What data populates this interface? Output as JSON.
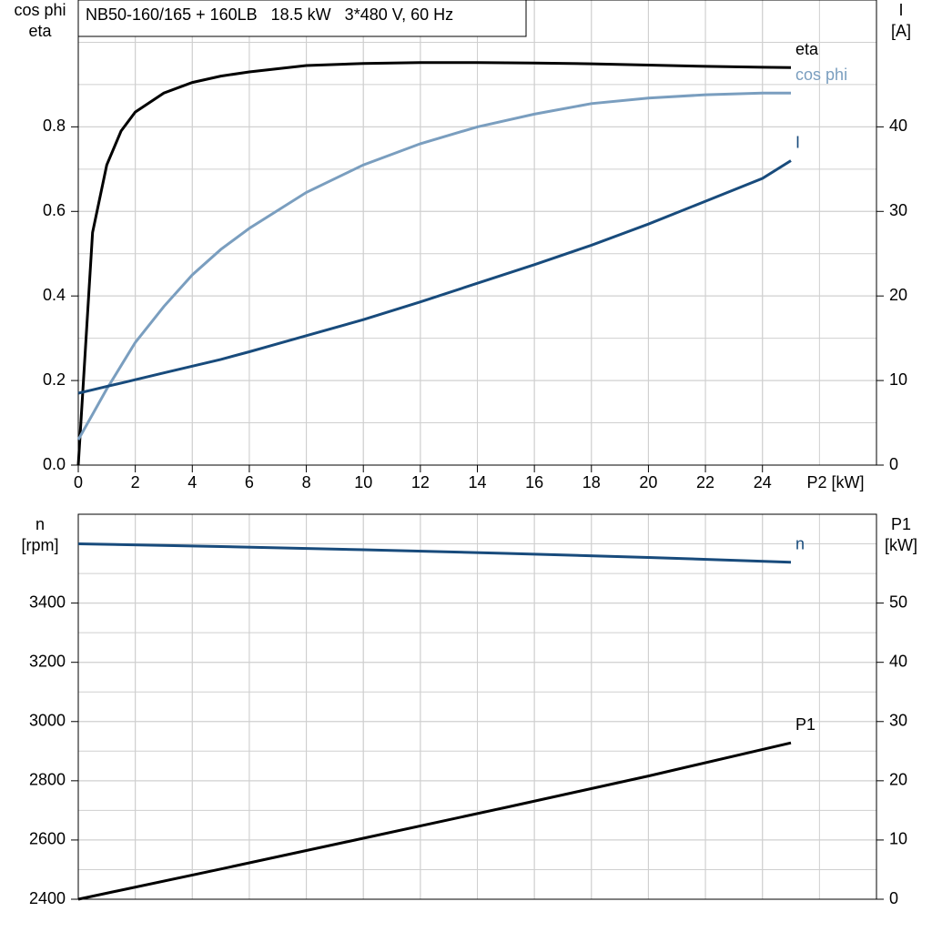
{
  "chart_data": [
    {
      "type": "line",
      "title": "NB50-160/165 + 160LB   18.5 kW   3*480 V, 60 Hz",
      "y_label": [
        "cos phi",
        "eta"
      ],
      "y2_label": [
        "I",
        "[A]"
      ],
      "x_label": "P2 [kW]",
      "xlim": [
        0,
        28
      ],
      "xticks": [
        0,
        2,
        4,
        6,
        8,
        10,
        12,
        14,
        16,
        18,
        20,
        22,
        24
      ],
      "ylim": [
        0,
        1.1
      ],
      "yticks": [
        {
          "value": 0,
          "label": "0.0"
        },
        0.2,
        0.4,
        0.6,
        0.8
      ],
      "y2lim": [
        0,
        55
      ],
      "y2ticks": [
        0,
        10,
        20,
        30,
        40
      ],
      "grid": true,
      "x": [
        0,
        0.5,
        1,
        1.5,
        2,
        3,
        4,
        5,
        6,
        8,
        10,
        12,
        14,
        16,
        18,
        20,
        22,
        24,
        25
      ],
      "series": [
        {
          "name": "eta",
          "color": "#000000",
          "values": [
            0,
            0.55,
            0.71,
            0.79,
            0.835,
            0.88,
            0.905,
            0.92,
            0.93,
            0.945,
            0.95,
            0.952,
            0.952,
            0.951,
            0.949,
            0.946,
            0.943,
            0.941,
            0.94
          ]
        },
        {
          "name": "cos phi",
          "color": "#7a9ebf",
          "values": [
            0.06,
            0.12,
            0.18,
            0.235,
            0.29,
            0.375,
            0.45,
            0.51,
            0.56,
            0.645,
            0.71,
            0.76,
            0.8,
            0.83,
            0.855,
            0.868,
            0.876,
            0.88,
            0.88
          ]
        },
        {
          "name": "I",
          "color": "#184b7c",
          "axis": "y2",
          "values": [
            8.5,
            8.9,
            9.3,
            9.7,
            10.1,
            10.9,
            11.7,
            12.5,
            13.4,
            15.3,
            17.2,
            19.3,
            21.5,
            23.7,
            26,
            28.5,
            31.2,
            33.9,
            36
          ]
        }
      ]
    },
    {
      "type": "line",
      "y_label": [
        "n",
        "[rpm]"
      ],
      "y2_label": [
        "P1",
        "[kW]"
      ],
      "xlim": [
        0,
        28
      ],
      "ylim": [
        2400,
        3700
      ],
      "yticks": [
        2400,
        2600,
        2800,
        3000,
        3200,
        3400
      ],
      "y2lim": [
        0,
        65
      ],
      "y2ticks": [
        0,
        10,
        20,
        30,
        40,
        50
      ],
      "grid": true,
      "x": [
        0,
        5,
        10,
        15,
        20,
        25
      ],
      "series": [
        {
          "name": "n",
          "color": "#184b7c",
          "values": [
            3600,
            3591,
            3580,
            3568,
            3554,
            3538
          ]
        },
        {
          "name": "P1",
          "color": "#000000",
          "axis": "y2",
          "values": [
            0,
            5.1,
            10.3,
            15.5,
            20.8,
            26.4
          ]
        }
      ]
    }
  ]
}
